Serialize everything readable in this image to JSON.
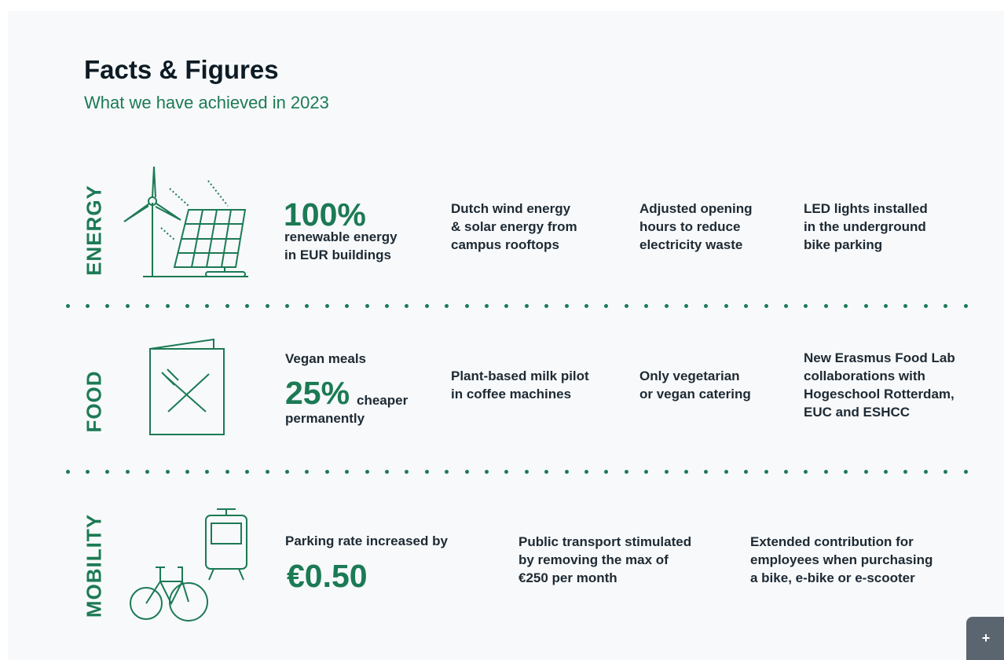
{
  "header": {
    "title": "Facts & Figures",
    "subtitle": "What we have achieved in 2023"
  },
  "sections": [
    {
      "label": "ENERGY",
      "highlight": {
        "figure": "100%",
        "lines": [
          "renewable energy",
          "in EUR buildings"
        ]
      },
      "facts": [
        [
          "Dutch wind energy",
          "& solar energy from",
          "campus rooftops"
        ],
        [
          "Adjusted opening",
          "hours to reduce",
          "electricity waste"
        ],
        [
          "LED lights installed",
          "in the underground",
          "bike parking"
        ]
      ]
    },
    {
      "label": "FOOD",
      "highlight": {
        "intro": "Vegan meals",
        "figure": "25%",
        "suffix": "cheaper",
        "lines": [
          "permanently"
        ]
      },
      "facts": [
        [
          "Plant-based milk pilot",
          "in coffee machines"
        ],
        [
          "Only vegetarian",
          "or vegan catering"
        ],
        [
          "New Erasmus Food Lab",
          "collaborations with",
          "Hogeschool Rotterdam,",
          "EUC and ESHCC"
        ]
      ]
    },
    {
      "label": "MOBILITY",
      "highlight": {
        "intro": "Parking rate increased by",
        "figure": "€0.50"
      },
      "facts": [
        [
          "Public transport stimulated",
          "by removing the max of",
          "€250 per month"
        ],
        [
          "Extended contribution for",
          "employees when purchasing",
          "a bike, e-bike or e-scooter"
        ]
      ]
    }
  ]
}
